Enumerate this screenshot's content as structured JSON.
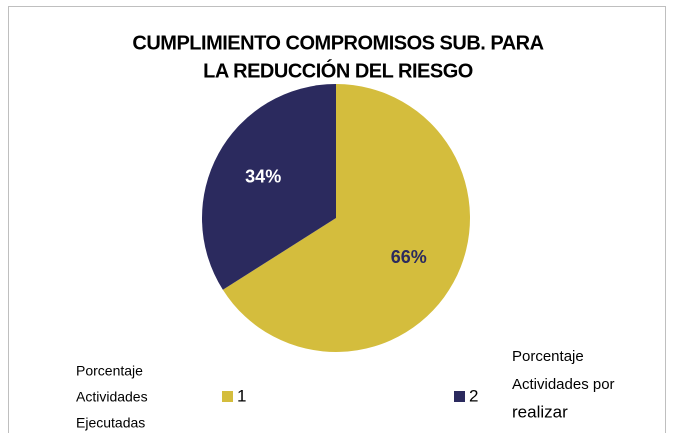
{
  "chart_data": {
    "type": "pie",
    "title": [
      "CUMPLIMIENTO COMPROMISOS SUB. PARA",
      "LA REDUCCIÓN DEL RIESGO"
    ],
    "categories": [
      "1",
      "2"
    ],
    "values": [
      66,
      34
    ],
    "value_labels": [
      "66%",
      "34%"
    ],
    "colors": [
      "#d4bd3d",
      "#2b2a5e"
    ],
    "annotations": [
      [
        "Porcentaje",
        "Actividades",
        "Ejecutadas"
      ],
      [
        "Porcentaje",
        "Actividades por",
        "realizar"
      ]
    ],
    "legend": "bottom"
  }
}
